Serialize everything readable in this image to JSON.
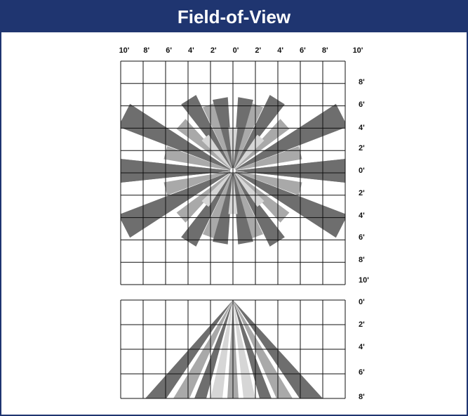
{
  "header": {
    "title": "Field-of-View"
  },
  "top_view": {
    "x_labels": [
      "10'",
      "8'",
      "6'",
      "4'",
      "2'",
      "0'",
      "2'",
      "4'",
      "6'",
      "8'",
      "10'"
    ],
    "y_labels": [
      "8'",
      "6'",
      "4'",
      "2'",
      "0'",
      "2'",
      "4'",
      "6'",
      "8'",
      "10'"
    ]
  },
  "side_view": {
    "y_labels": [
      "0'",
      "2'",
      "4'",
      "6'",
      "8'"
    ]
  }
}
